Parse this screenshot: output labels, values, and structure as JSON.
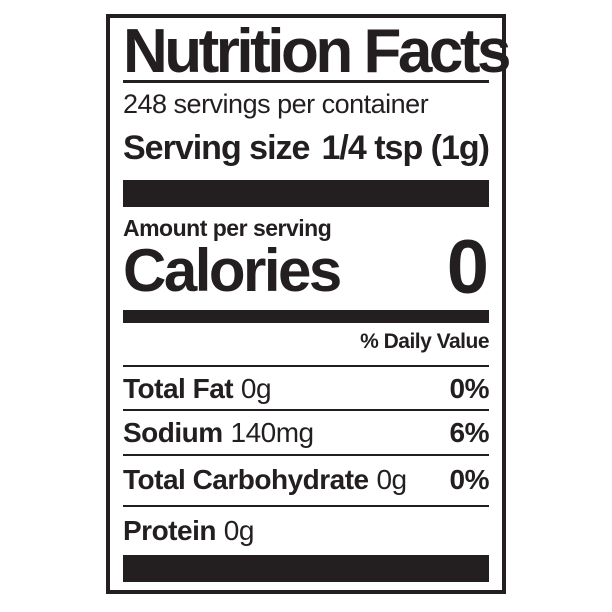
{
  "label": {
    "title": "Nutrition Facts",
    "servings_per_container": "248 servings per container",
    "serving_size": {
      "label": "Serving size",
      "value": "1/4 tsp (1g)"
    },
    "amount_per_serving": "Amount per serving",
    "calories": {
      "label": "Calories",
      "value": "0"
    },
    "daily_value_header": "% Daily Value",
    "nutrients": [
      {
        "name": "Total Fat",
        "amount": "0g",
        "daily_value": "0%"
      },
      {
        "name": "Sodium",
        "amount": "140mg",
        "daily_value": "6%"
      },
      {
        "name": "Total Carbohydrate",
        "amount": "0g",
        "daily_value": "0%"
      },
      {
        "name": "Protein",
        "amount": "0g",
        "daily_value": ""
      }
    ],
    "colors": {
      "ink": "#231f20",
      "background": "#ffffff"
    }
  }
}
